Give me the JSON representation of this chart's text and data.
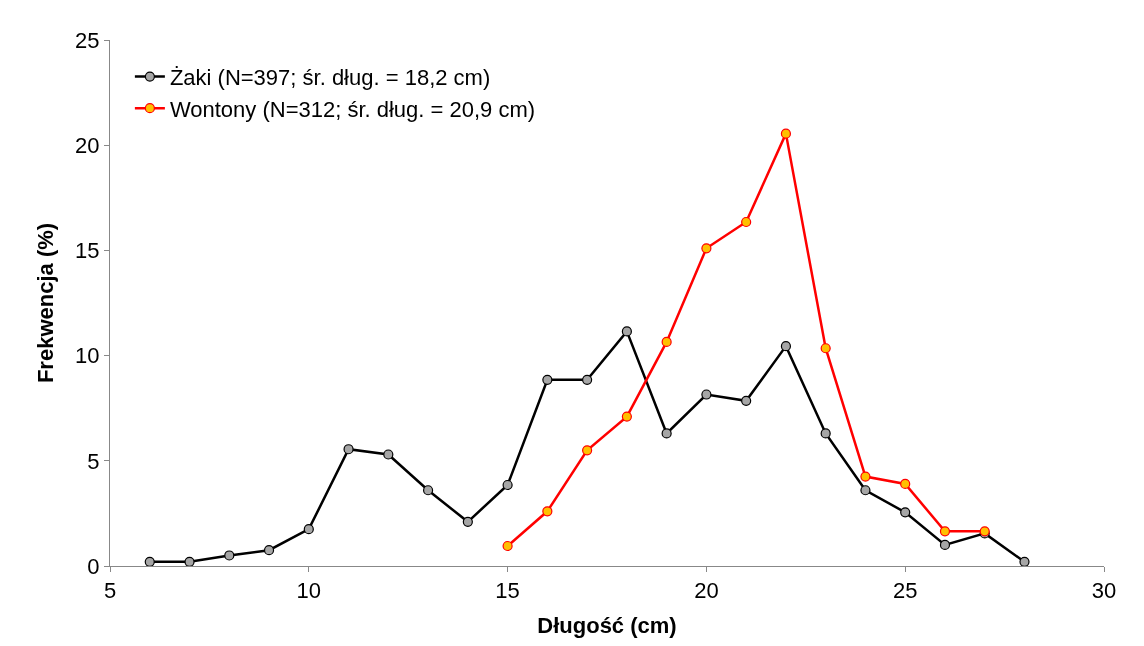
{
  "chart_data": {
    "type": "line",
    "xlabel": "Długość (cm)",
    "ylabel": "Frekwencja (%)",
    "xlim": [
      5,
      30
    ],
    "xticks": [
      5,
      10,
      15,
      20,
      25,
      30
    ],
    "ylim": [
      0,
      25
    ],
    "yticks": [
      0,
      5,
      10,
      15,
      20,
      25
    ],
    "legend": "top left",
    "marker": "circle",
    "line_style": "solid",
    "series": [
      {
        "name": "Żaki (N=397; śr. dług. = 18,2 cm)",
        "color": "#000000",
        "x": [
          6,
          7,
          8,
          9,
          10,
          11,
          12,
          13,
          14,
          15,
          16,
          17,
          18,
          19,
          20,
          21,
          22,
          23,
          24,
          25,
          26,
          27,
          28
        ],
        "values": [
          0.2,
          0.2,
          0.5,
          0.75,
          1.75,
          5.55,
          5.3,
          3.6,
          2.1,
          3.85,
          8.85,
          8.85,
          11.15,
          6.3,
          8.15,
          7.85,
          10.45,
          6.3,
          3.6,
          2.55,
          1.0,
          1.55,
          0.2
        ]
      },
      {
        "name": "Wontony (N=312; śr. dług. = 20,9 cm)",
        "color": "#ff0000",
        "x": [
          15,
          16,
          17,
          18,
          19,
          20,
          21,
          22,
          23,
          24,
          25,
          26,
          27
        ],
        "values": [
          0.95,
          2.6,
          5.5,
          7.1,
          10.65,
          15.1,
          16.35,
          20.55,
          10.35,
          4.25,
          3.9,
          1.65,
          1.65
        ]
      }
    ]
  }
}
